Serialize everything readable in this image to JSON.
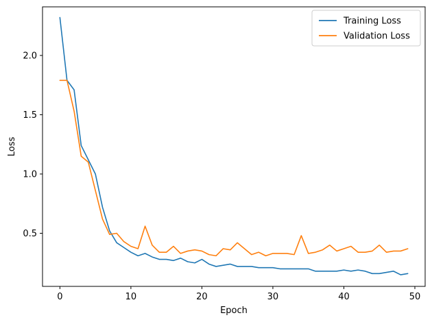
{
  "chart_data": {
    "type": "line",
    "title": "",
    "xlabel": "Epoch",
    "ylabel": "Loss",
    "xlim": [
      -2.45,
      51.45
    ],
    "ylim": [
      0.052,
      2.41
    ],
    "xticks": [
      0,
      10,
      20,
      30,
      40,
      50
    ],
    "yticks": [
      0.5,
      1.0,
      1.5,
      2.0
    ],
    "ytick_labels": [
      "0.5",
      "1.0",
      "1.5",
      "2.0"
    ],
    "grid": false,
    "legend_position": "top-right",
    "x": [
      0,
      1,
      2,
      3,
      4,
      5,
      6,
      7,
      8,
      9,
      10,
      11,
      12,
      13,
      14,
      15,
      16,
      17,
      18,
      19,
      20,
      21,
      22,
      23,
      24,
      25,
      26,
      27,
      28,
      29,
      30,
      31,
      32,
      33,
      34,
      35,
      36,
      37,
      38,
      39,
      40,
      41,
      42,
      43,
      44,
      45,
      46,
      47,
      48,
      49
    ],
    "series": [
      {
        "name": "Training Loss",
        "color": "#1f77b4",
        "values": [
          2.32,
          1.79,
          1.71,
          1.24,
          1.12,
          1.0,
          0.72,
          0.52,
          0.42,
          0.38,
          0.34,
          0.31,
          0.33,
          0.3,
          0.28,
          0.28,
          0.27,
          0.29,
          0.26,
          0.25,
          0.28,
          0.24,
          0.22,
          0.23,
          0.24,
          0.22,
          0.22,
          0.22,
          0.21,
          0.21,
          0.21,
          0.2,
          0.2,
          0.2,
          0.2,
          0.2,
          0.18,
          0.18,
          0.18,
          0.18,
          0.19,
          0.18,
          0.19,
          0.18,
          0.16,
          0.16,
          0.17,
          0.18,
          0.15,
          0.16
        ]
      },
      {
        "name": "Validation Loss",
        "color": "#ff7f0e",
        "values": [
          1.79,
          1.79,
          1.53,
          1.15,
          1.1,
          0.86,
          0.62,
          0.49,
          0.5,
          0.43,
          0.39,
          0.37,
          0.56,
          0.4,
          0.34,
          0.34,
          0.39,
          0.33,
          0.35,
          0.36,
          0.35,
          0.32,
          0.31,
          0.37,
          0.36,
          0.42,
          0.37,
          0.32,
          0.34,
          0.31,
          0.33,
          0.33,
          0.33,
          0.32,
          0.48,
          0.33,
          0.34,
          0.36,
          0.4,
          0.35,
          0.37,
          0.39,
          0.34,
          0.34,
          0.35,
          0.4,
          0.34,
          0.35,
          0.35,
          0.37
        ]
      }
    ]
  }
}
